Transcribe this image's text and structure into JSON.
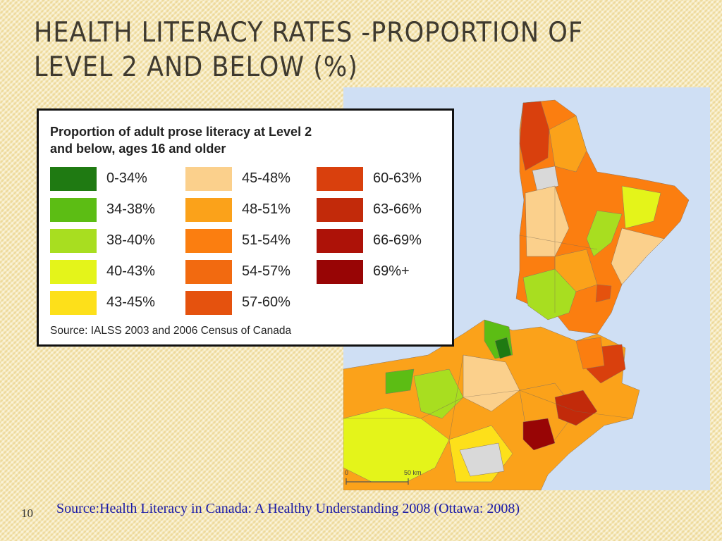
{
  "slide": {
    "title_line1": "HEALTH LITERACY RATES -PROPORTION OF",
    "title_line2": "LEVEL 2 AND BELOW (%)",
    "number": "10",
    "source": "Source:Health Literacy in Canada: A Healthy Understanding 2008 (Ottawa: 2008)"
  },
  "legend": {
    "title_line1": "Proportion of adult prose literacy at Level 2",
    "title_line2": "and below, ages 16 and older",
    "source": "Source: IALSS 2003 and 2006 Census of Canada",
    "items": [
      {
        "label": "0-34%",
        "color": "#1f7a12"
      },
      {
        "label": "34-38%",
        "color": "#5cbd14"
      },
      {
        "label": "38-40%",
        "color": "#a8de20"
      },
      {
        "label": "40-43%",
        "color": "#e4f41a"
      },
      {
        "label": "43-45%",
        "color": "#fde01a"
      },
      {
        "label": "45-48%",
        "color": "#fbd08c"
      },
      {
        "label": "48-51%",
        "color": "#fba21a"
      },
      {
        "label": "51-54%",
        "color": "#fb7e10"
      },
      {
        "label": "54-57%",
        "color": "#f26a10"
      },
      {
        "label": "57-60%",
        "color": "#e5520e"
      },
      {
        "label": "60-63%",
        "color": "#d9400d"
      },
      {
        "label": "63-66%",
        "color": "#c22a0a"
      },
      {
        "label": "66-69%",
        "color": "#ad1208"
      },
      {
        "label": "69%+",
        "color": "#980505"
      }
    ]
  },
  "map": {
    "water_color": "#cfdff4",
    "no_data_color": "#d9d9d9",
    "scale_zero": "0",
    "scale_label": "50 km"
  }
}
